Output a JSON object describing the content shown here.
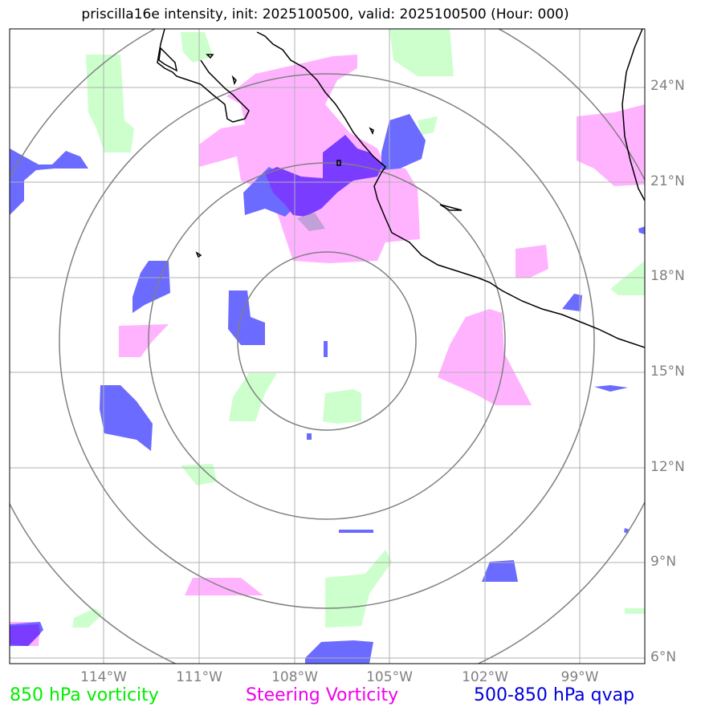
{
  "title": "priscilla16e intensity, init: 2025100500, valid: 2025100500 (Hour: 000)",
  "lat_labels": [
    "24°N",
    "21°N",
    "18°N",
    "15°N",
    "12°N",
    "9°N",
    "6°N"
  ],
  "lon_labels": [
    "114°W",
    "111°W",
    "108°W",
    "105°W",
    "102°W",
    "99°W"
  ],
  "legend": {
    "vorticity_850": {
      "label": "850 hPa vorticity",
      "color": "#00ee00"
    },
    "steering": {
      "label": "Steering Vorticity",
      "color": "#ee00ee"
    },
    "qvap": {
      "label": "500-850 hPa qvap",
      "color": "#0000dd"
    }
  },
  "colors": {
    "vort850_fill": "#ccffcc",
    "steering_fill": "#ffb3ff",
    "qvap_fill": "#6b6bff",
    "overlap_fill": "#7a3dff",
    "grid": "#b0b0b0",
    "range_rings": "#808080",
    "coastline": "#000000"
  }
}
